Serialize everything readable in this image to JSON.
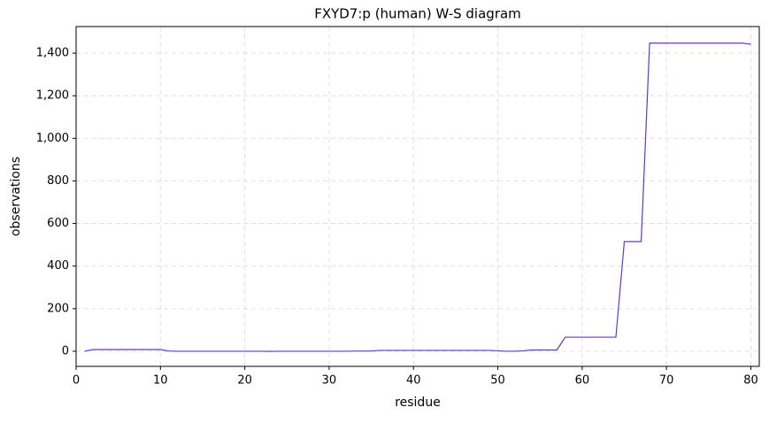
{
  "chart_data": {
    "type": "line",
    "title": "FXYD7:p (human) W-S diagram",
    "x_label": "residue",
    "y_label": "observations",
    "x": [
      1,
      2,
      3,
      4,
      5,
      6,
      7,
      8,
      9,
      10,
      11,
      12,
      13,
      14,
      15,
      16,
      17,
      18,
      19,
      20,
      21,
      22,
      23,
      24,
      25,
      26,
      27,
      28,
      29,
      30,
      31,
      32,
      33,
      34,
      35,
      36,
      37,
      38,
      39,
      40,
      41,
      42,
      43,
      44,
      45,
      46,
      47,
      48,
      49,
      50,
      51,
      52,
      53,
      54,
      55,
      56,
      57,
      58,
      59,
      60,
      61,
      62,
      63,
      64,
      65,
      66,
      67,
      68,
      69,
      70,
      71,
      72,
      73,
      74,
      75,
      76,
      77,
      78,
      79,
      80
    ],
    "series": [
      {
        "color": "#6039c8",
        "values": [
          0,
          8,
          8,
          8,
          8,
          8,
          8,
          8,
          8,
          8,
          1,
          0,
          0,
          0,
          0,
          0,
          0,
          0,
          0,
          0,
          0,
          0,
          -1,
          0,
          0,
          0,
          0,
          0,
          0,
          0,
          0,
          0,
          1,
          1,
          1,
          4,
          4,
          4,
          4,
          4,
          4,
          4,
          4,
          4,
          4,
          4,
          4,
          4,
          4,
          2,
          0,
          0,
          2,
          6,
          6,
          6,
          6,
          66,
          66,
          66,
          66,
          66,
          66,
          66,
          515,
          515,
          515,
          1447,
          1447,
          1447,
          1447,
          1447,
          1447,
          1447,
          1447,
          1447,
          1447,
          1447,
          1447,
          1442
        ]
      }
    ],
    "xlim": [
      0,
      81
    ],
    "ylim": [
      -71,
      1525
    ],
    "xticks": [
      0,
      10,
      20,
      30,
      40,
      50,
      60,
      70,
      80
    ],
    "yticks": [
      0,
      200,
      400,
      600,
      800,
      {
        "value": 1000,
        "label": "1,000"
      },
      {
        "value": 1200,
        "label": "1,200"
      },
      {
        "value": 1400,
        "label": "1,400"
      }
    ],
    "grid": true
  }
}
